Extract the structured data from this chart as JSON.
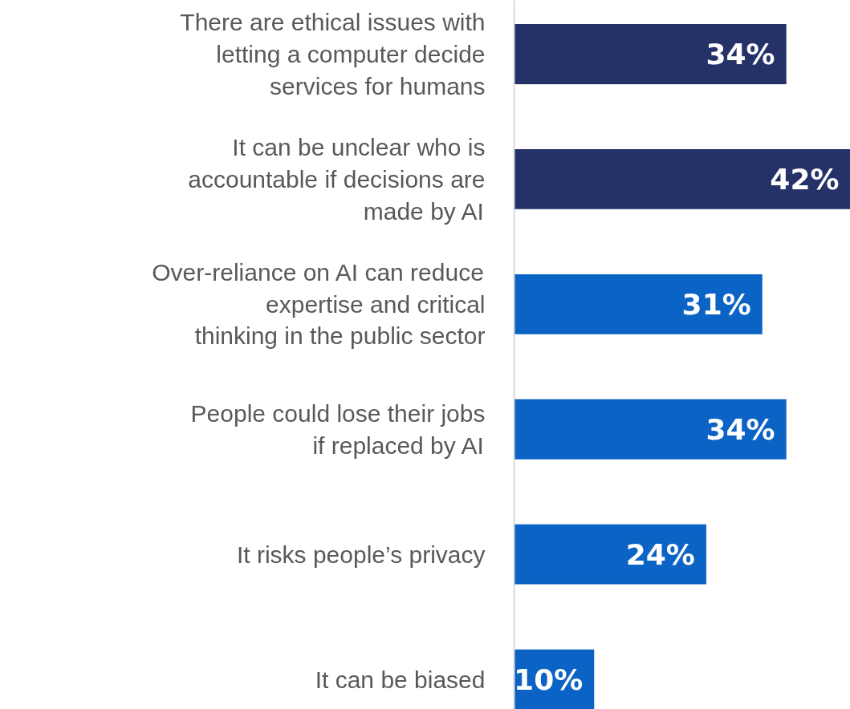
{
  "chart_data": {
    "type": "bar",
    "orientation": "horizontal",
    "categories": [
      "There are ethical issues with letting a computer decide services for humans",
      "It can be unclear who is accountable if decisions are made by AI",
      "Over-reliance on AI can reduce expertise and critical thinking in the public sector",
      "People could lose their jobs if replaced by AI",
      "It risks people’s privacy",
      "It can be biased"
    ],
    "values": [
      34,
      42,
      31,
      34,
      24,
      10
    ],
    "colors": [
      "#253268",
      "#253268",
      "#0b63c5",
      "#0b63c5",
      "#0b63c5",
      "#0b63c5"
    ],
    "value_labels": [
      "34%",
      "42%",
      "31%",
      "34%",
      "24%",
      "10%"
    ],
    "xlim": [
      0,
      42
    ],
    "tick_labels": "y"
  }
}
